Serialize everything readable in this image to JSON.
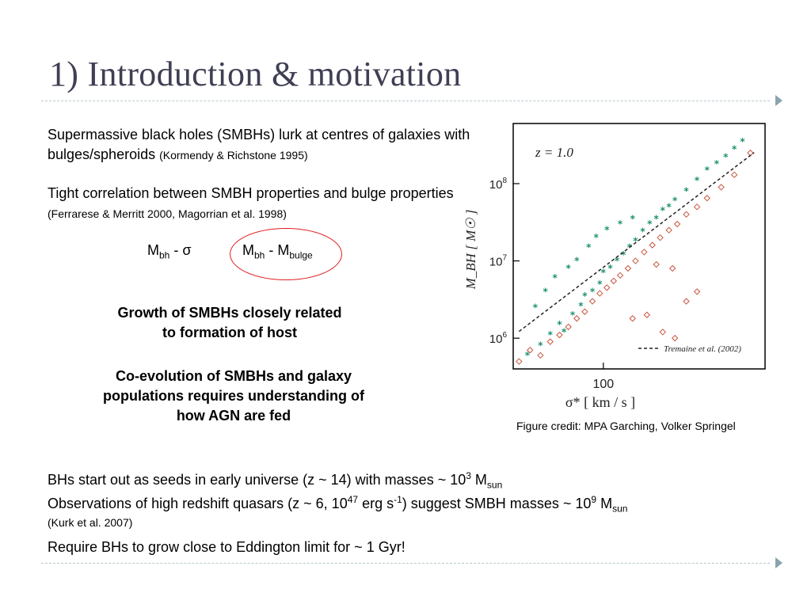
{
  "slide": {
    "title": "1) Introduction & motivation",
    "p1_main": "Supermassive black holes (SMBHs) lurk at centres of galaxies with bulges/spheroids",
    "p1_ref": "(Kormendy & Richstone 1995)",
    "p2_main": "Tight correlation between SMBH properties and bulge properties",
    "p2_ref": "(Ferrarese & Merritt 2000, Magorrian et al. 1998)",
    "eq1": {
      "m": "M",
      "sub": "bh",
      "rest": " - σ"
    },
    "eq2": {
      "m": "M",
      "sub": "bh",
      "mid": " - M",
      "sub2": "bulge"
    },
    "growth_line1": "Growth of SMBHs closely related",
    "growth_line2": "to formation of host",
    "coevo_line1": "Co-evolution of SMBHs and galaxy",
    "coevo_line2": "populations requires understanding of",
    "coevo_line3": "how AGN are fed",
    "credit": "Figure credit:  MPA Garching, Volker Springel",
    "b1": {
      "pre": "BHs start out as seeds in early universe (z ~ 14) with masses ~ 10",
      "sup": "3",
      "m": " M",
      "sub": "sun"
    },
    "b2": {
      "pre": "Observations of high redshift quasars (z ~ 6, 10",
      "sup1": "47",
      "mid": " erg s",
      "sup2": "-1",
      "post": ") suggest SMBH masses ~ 10",
      "sup3": "9",
      "m": " M",
      "sub": "sun",
      "ref": "(Kurk et al. 2007)"
    },
    "b3": "Require BHs to grow close to Eddington limit for ~ 1 Gyr!"
  },
  "chart_data": {
    "type": "scatter",
    "annotation": "z = 1.0",
    "xlabel": "σ*  [ km / s ]",
    "ylabel": "M_BH  [ M☉ ]",
    "x_ticks": [
      "100"
    ],
    "y_ticks": [
      "10^6",
      "10^7",
      "10^8"
    ],
    "yscale": "log",
    "xlim": [
      60,
      250
    ],
    "ylim": [
      400000.0,
      600000000.0
    ],
    "series": [
      {
        "name": "",
        "color": "#1a8f6f",
        "marker": "asterisk",
        "points": [
          [
            65,
            600000.0
          ],
          [
            70,
            800000.0
          ],
          [
            74,
            1100000.0
          ],
          [
            78,
            1500000.0
          ],
          [
            80,
            1200000.0
          ],
          [
            84,
            2000000.0
          ],
          [
            88,
            2600000.0
          ],
          [
            90,
            3500000.0
          ],
          [
            94,
            4000000.0
          ],
          [
            98,
            5000000.0
          ],
          [
            100,
            7000000.0
          ],
          [
            104,
            8000000.0
          ],
          [
            108,
            10000000.0
          ],
          [
            112,
            12000000.0
          ],
          [
            116,
            15000000.0
          ],
          [
            120,
            18000000.0
          ],
          [
            125,
            24000000.0
          ],
          [
            130,
            30000000.0
          ],
          [
            135,
            35000000.0
          ],
          [
            140,
            45000000.0
          ],
          [
            145,
            50000000.0
          ],
          [
            150,
            60000000.0
          ],
          [
            160,
            80000000.0
          ],
          [
            170,
            110000000.0
          ],
          [
            180,
            150000000.0
          ],
          [
            190,
            180000000.0
          ],
          [
            200,
            220000000.0
          ],
          [
            210,
            280000000.0
          ],
          [
            220,
            350000000.0
          ],
          [
            92,
            15000000.0
          ],
          [
            96,
            20000000.0
          ],
          [
            102,
            25000000.0
          ],
          [
            110,
            30000000.0
          ],
          [
            118,
            35000000.0
          ],
          [
            86,
            10000000.0
          ],
          [
            82,
            8000000.0
          ],
          [
            76,
            6000000.0
          ],
          [
            72,
            4000000.0
          ],
          [
            68,
            2500000.0
          ]
        ]
      },
      {
        "name": "",
        "color": "#c8563f",
        "marker": "diamond",
        "points": [
          [
            62,
            500000.0
          ],
          [
            66,
            700000.0
          ],
          [
            70,
            600000.0
          ],
          [
            74,
            900000.0
          ],
          [
            78,
            1100000.0
          ],
          [
            82,
            1400000.0
          ],
          [
            86,
            1800000.0
          ],
          [
            90,
            2200000.0
          ],
          [
            94,
            3000000.0
          ],
          [
            98,
            3800000.0
          ],
          [
            102,
            4500000.0
          ],
          [
            106,
            5500000.0
          ],
          [
            110,
            6500000.0
          ],
          [
            115,
            8000000.0
          ],
          [
            120,
            10000000.0
          ],
          [
            126,
            13000000.0
          ],
          [
            132,
            16000000.0
          ],
          [
            138,
            20000000.0
          ],
          [
            145,
            25000000.0
          ],
          [
            152,
            30000000.0
          ],
          [
            160,
            40000000.0
          ],
          [
            170,
            50000000.0
          ],
          [
            180,
            65000000.0
          ],
          [
            195,
            90000000.0
          ],
          [
            210,
            130000000.0
          ],
          [
            230,
            250000000.0
          ],
          [
            128,
            2000000.0
          ],
          [
            118,
            1800000.0
          ],
          [
            140,
            1200000.0
          ],
          [
            150,
            1000000.0
          ],
          [
            160,
            3000000.0
          ],
          [
            170,
            4000000.0
          ],
          [
            148,
            8000000.0
          ],
          [
            135,
            9000000.0
          ]
        ]
      }
    ],
    "fit_line": {
      "label": "Tremaine et al. (2002)",
      "style": "dashed",
      "color": "#222222"
    }
  }
}
